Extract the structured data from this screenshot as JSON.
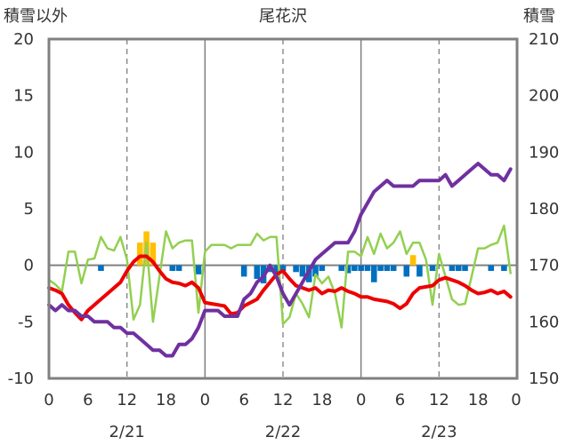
{
  "chart_data": {
    "type": "line",
    "title": "尾花沢",
    "ylabel_left": "積雪以外",
    "ylabel_right": "積雪",
    "ylim_left": [
      -10,
      20
    ],
    "ylim_right": [
      150,
      210
    ],
    "y_ticks_left": [
      "20",
      "15",
      "10",
      "5",
      "0",
      "-5",
      "-10"
    ],
    "y_ticks_right": [
      "210",
      "200",
      "190",
      "180",
      "170",
      "160",
      "150"
    ],
    "x_hour_ticks": [
      "0",
      "6",
      "12",
      "18",
      "0",
      "6",
      "12",
      "18",
      "0",
      "6",
      "12",
      "18",
      "0"
    ],
    "date_labels": [
      "2/21",
      "2/22",
      "2/23"
    ],
    "x_range_hours": [
      0,
      72
    ],
    "grid": "dashed vertical lines every 12 hours",
    "colors": {
      "temperature": "#ee0000",
      "snow_depth": "#7030a0",
      "third_line": "#92d050",
      "bar_positive": "#ffc000",
      "bar_negative": "#0070c0"
    },
    "series": [
      {
        "key": "temperature",
        "axis": "left",
        "color": "#ee0000",
        "x": [
          0,
          1,
          2,
          3,
          4,
          5,
          6,
          7,
          8,
          9,
          10,
          11,
          12,
          13,
          14,
          15,
          16,
          17,
          18,
          19,
          20,
          21,
          22,
          23,
          24,
          25,
          26,
          27,
          28,
          29,
          30,
          31,
          32,
          33,
          34,
          35,
          36,
          37,
          38,
          39,
          40,
          41,
          42,
          43,
          44,
          45,
          46,
          47,
          48,
          49,
          50,
          51,
          52,
          53,
          54,
          55,
          56,
          57,
          58,
          59,
          60,
          61,
          62,
          63,
          64,
          65,
          66,
          67,
          68,
          69,
          70,
          71
        ],
        "values": [
          -2.0,
          -2.2,
          -2.5,
          -3.5,
          -4.2,
          -4.8,
          -4.0,
          -3.5,
          -3.0,
          -2.5,
          -2.0,
          -1.5,
          -0.5,
          0.3,
          0.8,
          0.8,
          0.3,
          -0.5,
          -1.2,
          -1.5,
          -1.6,
          -1.8,
          -1.5,
          -2.0,
          -3.3,
          -3.4,
          -3.5,
          -3.6,
          -4.3,
          -4.2,
          -3.6,
          -3.3,
          -3.0,
          -2.2,
          -1.5,
          -0.8,
          -0.5,
          -1.2,
          -1.8,
          -2.0,
          -2.2,
          -2.0,
          -2.5,
          -2.2,
          -2.3,
          -2.0,
          -2.3,
          -2.5,
          -2.8,
          -2.8,
          -3.0,
          -3.1,
          -3.2,
          -3.4,
          -3.8,
          -3.4,
          -2.5,
          -2.0,
          -1.9,
          -1.8,
          -1.3,
          -1.1,
          -1.3,
          -1.5,
          -1.8,
          -2.2,
          -2.5,
          -2.4,
          -2.2,
          -2.5,
          -2.3,
          -2.8
        ]
      },
      {
        "key": "snow_depth",
        "axis": "right",
        "color": "#7030a0",
        "x": [
          0,
          1,
          2,
          3,
          4,
          5,
          6,
          7,
          8,
          9,
          10,
          11,
          12,
          13,
          14,
          15,
          16,
          17,
          18,
          19,
          20,
          21,
          22,
          23,
          24,
          25,
          26,
          27,
          28,
          29,
          30,
          31,
          32,
          33,
          34,
          35,
          36,
          37,
          38,
          39,
          40,
          41,
          42,
          43,
          44,
          45,
          46,
          47,
          48,
          49,
          50,
          51,
          52,
          53,
          54,
          55,
          56,
          57,
          58,
          59,
          60,
          61,
          62,
          63,
          64,
          65,
          66,
          67,
          68,
          69,
          70,
          71
        ],
        "values": [
          163,
          162,
          163,
          162,
          162,
          161,
          161,
          160,
          160,
          160,
          159,
          159,
          158,
          158,
          157,
          156,
          155,
          155,
          154,
          154,
          156,
          156,
          157,
          159,
          162,
          162,
          162,
          161,
          161,
          161,
          164,
          165,
          167,
          168,
          170,
          168,
          165,
          163,
          165,
          167,
          169,
          171,
          172,
          173,
          174,
          174,
          174,
          176,
          179,
          181,
          183,
          184,
          185,
          184,
          184,
          184,
          184,
          185,
          185,
          185,
          185,
          186,
          184,
          185,
          186,
          187,
          188,
          187,
          186,
          186,
          185,
          187
        ]
      },
      {
        "key": "third_line",
        "axis": "left",
        "color": "#92d050",
        "x": [
          0,
          1,
          2,
          3,
          4,
          5,
          6,
          7,
          8,
          9,
          10,
          11,
          12,
          13,
          14,
          15,
          16,
          17,
          18,
          19,
          20,
          21,
          22,
          23,
          24,
          25,
          26,
          27,
          28,
          29,
          30,
          31,
          32,
          33,
          34,
          35,
          36,
          37,
          38,
          39,
          40,
          41,
          42,
          43,
          44,
          45,
          46,
          47,
          48,
          49,
          50,
          51,
          52,
          53,
          54,
          55,
          56,
          57,
          58,
          59,
          60,
          61,
          62,
          63,
          64,
          65,
          66,
          67,
          68,
          69,
          70,
          71
        ],
        "values": [
          -1.3,
          -1.7,
          -2.3,
          1.2,
          1.2,
          -1.6,
          0.5,
          0.6,
          2.5,
          1.5,
          1.3,
          2.5,
          0.5,
          -4.8,
          -3.5,
          2.0,
          -5.0,
          -1.0,
          3.0,
          1.5,
          2.0,
          2.2,
          2.2,
          -4.2,
          1.2,
          1.8,
          1.8,
          1.8,
          1.5,
          1.8,
          1.8,
          1.8,
          2.8,
          2.2,
          2.5,
          2.5,
          -5.2,
          -4.6,
          -2.5,
          -3.4,
          -4.6,
          -0.8,
          -1.6,
          -1.0,
          -2.5,
          -5.5,
          1.2,
          1.2,
          0.8,
          2.5,
          1.0,
          2.8,
          1.5,
          2.0,
          3.0,
          1.0,
          2.0,
          2.0,
          0.5,
          -3.5,
          1.0,
          -1.0,
          -3.0,
          -3.5,
          -3.4,
          -1.0,
          1.5,
          1.5,
          1.8,
          2.0,
          3.5,
          -0.7
        ]
      }
    ],
    "bars": {
      "axis": "left",
      "note": "centered at x hour",
      "x": [
        8,
        14,
        15,
        16,
        19,
        20,
        23,
        30,
        32,
        33,
        34,
        35,
        36,
        38,
        39,
        40,
        41,
        42,
        45,
        46,
        47,
        48,
        49,
        50,
        51,
        52,
        53,
        55,
        56,
        57,
        59,
        62,
        63,
        64,
        68,
        70
      ],
      "values": [
        -0.5,
        2.0,
        3.0,
        2.0,
        -0.5,
        -0.5,
        -0.8,
        -1.0,
        -1.2,
        -1.6,
        -0.6,
        -0.7,
        -0.5,
        -0.6,
        -1.0,
        -1.5,
        -1.0,
        -0.5,
        -0.5,
        -0.7,
        -0.5,
        -0.5,
        -0.5,
        -1.5,
        -0.5,
        -0.5,
        -0.5,
        -1.0,
        0.9,
        -1.0,
        -0.5,
        -0.5,
        -0.5,
        -0.5,
        -0.5,
        -0.5
      ]
    }
  }
}
